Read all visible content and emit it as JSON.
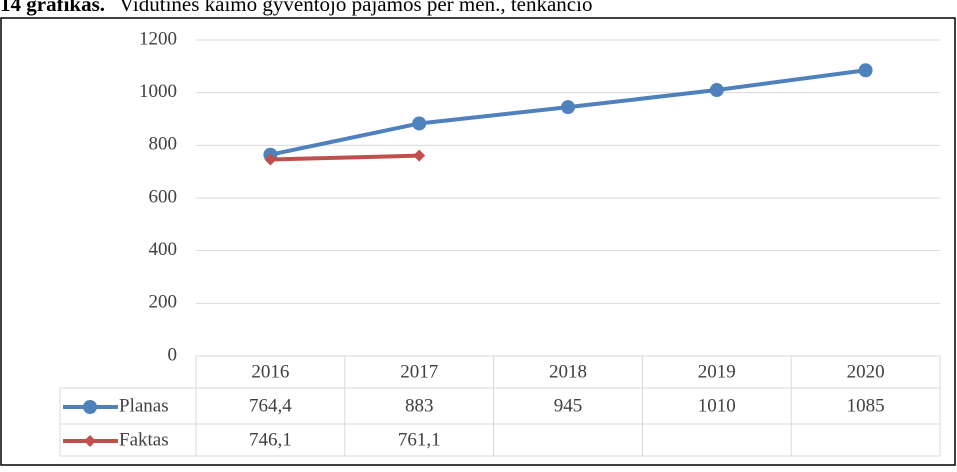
{
  "chart_data": {
    "type": "line",
    "title_number": "14 grafikas.",
    "title": "Vidutinės kaimo gyventojo pajamos per mėn., tenkančio",
    "categories": [
      "2016",
      "2017",
      "2018",
      "2019",
      "2020"
    ],
    "series": [
      {
        "name": "Planas",
        "color": "#4f81bd",
        "marker": "circle",
        "values": [
          764.4,
          883,
          945,
          1010,
          1085
        ],
        "value_labels": [
          "764,4",
          "883",
          "945",
          "1010",
          "1085"
        ]
      },
      {
        "name": "Faktas",
        "color": "#c0504d",
        "marker": "diamond",
        "values": [
          746.1,
          761.1,
          null,
          null,
          null
        ],
        "value_labels": [
          "746,1",
          "761,1",
          null,
          null,
          null
        ]
      }
    ],
    "ylim": [
      0,
      1200
    ],
    "yticks": [
      0,
      200,
      400,
      600,
      800,
      1000,
      1200
    ],
    "grid": true,
    "data_table": true
  }
}
